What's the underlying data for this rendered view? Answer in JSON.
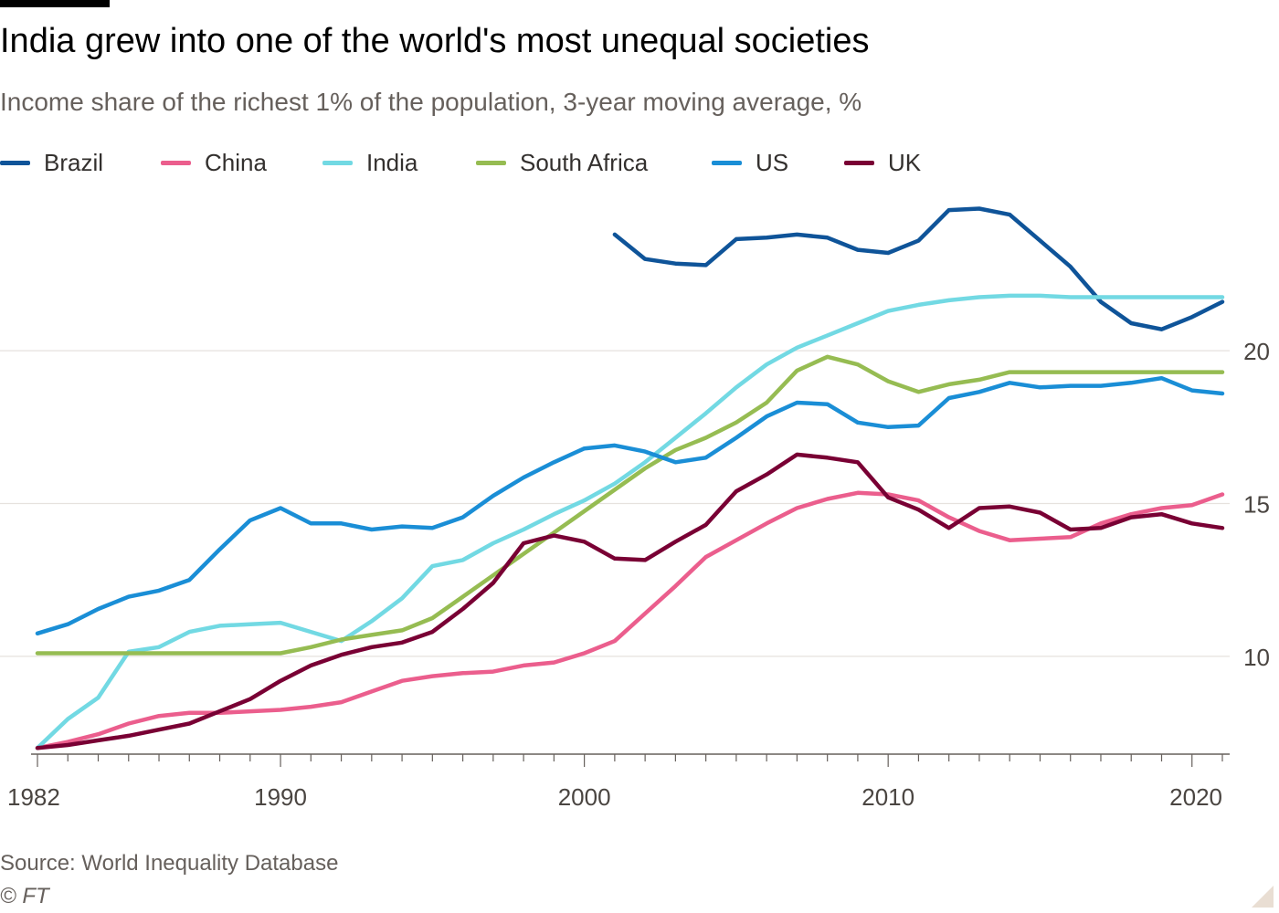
{
  "header": {
    "title": "India grew into one of the world's most unequal societies",
    "subtitle": "Income share of the richest 1% of the population, 3-year moving average, %"
  },
  "footer": {
    "source": "Source: World Inequality Database",
    "credit": "© FT"
  },
  "colors": {
    "background": "#ffffff",
    "gridline": "#e6e2de",
    "axis": "#66605c",
    "tick_text": "#4a4541"
  },
  "chart_data": {
    "type": "line",
    "title": "India grew into one of the world's most unequal societies",
    "subtitle": "Income share of the richest 1% of the population, 3-year moving average, %",
    "xlabel": "",
    "ylabel": "",
    "xlim": [
      1982,
      2021
    ],
    "ylim": [
      6.8,
      25.5
    ],
    "x_ticks": [
      1982,
      1990,
      2000,
      2010,
      2020
    ],
    "y_ticks": [
      10,
      15,
      20
    ],
    "y_axis_side": "right",
    "grid": "horizontal",
    "legend_position": "top",
    "x": [
      1982,
      1983,
      1984,
      1985,
      1986,
      1987,
      1988,
      1989,
      1990,
      1991,
      1992,
      1993,
      1994,
      1995,
      1996,
      1997,
      1998,
      1999,
      2000,
      2001,
      2002,
      2003,
      2004,
      2005,
      2006,
      2007,
      2008,
      2009,
      2010,
      2011,
      2012,
      2013,
      2014,
      2015,
      2016,
      2017,
      2018,
      2019,
      2020,
      2021
    ],
    "series": [
      {
        "name": "Brazil",
        "color": "#0f5499",
        "values": [
          null,
          null,
          null,
          null,
          null,
          null,
          null,
          null,
          null,
          null,
          null,
          null,
          null,
          null,
          null,
          null,
          null,
          null,
          null,
          23.8,
          23.0,
          22.85,
          22.8,
          23.65,
          23.7,
          23.8,
          23.7,
          23.3,
          23.2,
          23.6,
          24.6,
          24.65,
          24.45,
          23.6,
          22.75,
          21.6,
          20.9,
          20.7,
          21.1,
          21.6
        ]
      },
      {
        "name": "China",
        "color": "#eb5e8d",
        "values": [
          7.0,
          7.2,
          7.45,
          7.8,
          8.05,
          8.15,
          8.15,
          8.2,
          8.25,
          8.35,
          8.5,
          8.85,
          9.2,
          9.35,
          9.45,
          9.5,
          9.7,
          9.8,
          10.1,
          10.5,
          11.4,
          12.3,
          13.25,
          13.8,
          14.35,
          14.85,
          15.15,
          15.35,
          15.3,
          15.1,
          14.55,
          14.1,
          13.8,
          13.85,
          13.9,
          14.35,
          14.65,
          14.85,
          14.95,
          15.3
        ]
      },
      {
        "name": "India",
        "color": "#72d9e3",
        "values": [
          7.0,
          7.95,
          8.65,
          10.15,
          10.3,
          10.8,
          11.0,
          11.05,
          11.1,
          10.8,
          10.5,
          11.15,
          11.9,
          12.95,
          13.15,
          13.7,
          14.15,
          14.65,
          15.1,
          15.65,
          16.35,
          17.15,
          17.95,
          18.8,
          19.55,
          20.1,
          20.5,
          20.9,
          21.3,
          21.5,
          21.65,
          21.75,
          21.8,
          21.8,
          21.75,
          21.75,
          21.75,
          21.75,
          21.75,
          21.75
        ]
      },
      {
        "name": "South Africa",
        "color": "#96bc52",
        "values": [
          10.1,
          10.1,
          10.1,
          10.1,
          10.1,
          10.1,
          10.1,
          10.1,
          10.1,
          10.3,
          10.55,
          10.7,
          10.85,
          11.25,
          11.95,
          12.65,
          13.35,
          14.05,
          14.75,
          15.45,
          16.15,
          16.75,
          17.15,
          17.65,
          18.3,
          19.35,
          19.8,
          19.55,
          19.0,
          18.65,
          18.9,
          19.05,
          19.3,
          19.3,
          19.3,
          19.3,
          19.3,
          19.3,
          19.3,
          19.3
        ]
      },
      {
        "name": "US",
        "color": "#1a8ed6",
        "values": [
          10.75,
          11.05,
          11.55,
          11.95,
          12.15,
          12.5,
          13.5,
          14.45,
          14.85,
          14.35,
          14.35,
          14.15,
          14.25,
          14.2,
          14.55,
          15.25,
          15.85,
          16.35,
          16.8,
          16.9,
          16.7,
          16.35,
          16.5,
          17.15,
          17.85,
          18.3,
          18.25,
          17.65,
          17.5,
          17.55,
          18.45,
          18.65,
          18.95,
          18.8,
          18.85,
          18.85,
          18.95,
          19.1,
          18.7,
          18.6
        ]
      },
      {
        "name": "UK",
        "color": "#790034",
        "values": [
          7.0,
          7.1,
          7.25,
          7.4,
          7.6,
          7.8,
          8.2,
          8.6,
          9.2,
          9.7,
          10.05,
          10.3,
          10.45,
          10.8,
          11.55,
          12.4,
          13.7,
          13.95,
          13.75,
          13.2,
          13.15,
          13.75,
          14.3,
          15.4,
          15.95,
          16.6,
          16.5,
          16.35,
          15.2,
          14.8,
          14.2,
          14.85,
          14.9,
          14.7,
          14.15,
          14.2,
          14.55,
          14.65,
          14.35,
          14.2
        ]
      }
    ]
  }
}
